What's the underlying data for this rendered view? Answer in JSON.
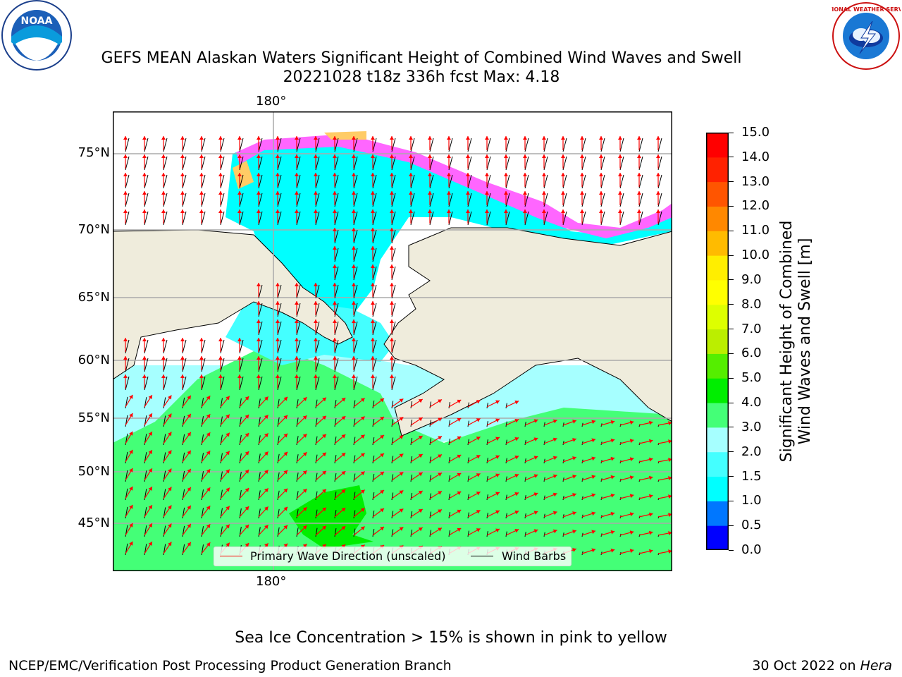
{
  "header": {
    "title_line1": "GEFS MEAN Alaskan Waters Significant Height of Combined Wind Waves and Swell",
    "title_line2": "20221028 t18z 336h fcst   Max: 4.18"
  },
  "logos": {
    "noaa": {
      "icon": "noaa-logo-icon",
      "text": "NOAA"
    },
    "nws": {
      "icon": "nws-logo-icon",
      "text": "NATIONAL WEATHER SERVICE"
    }
  },
  "map": {
    "lat_labels": [
      "75°N",
      "70°N",
      "65°N",
      "60°N",
      "55°N",
      "50°N",
      "45°N"
    ],
    "lon_label_top": "180°",
    "lon_label_bottom": "180°",
    "land_color": "#efecdc",
    "grid_color": "#aaaaaa",
    "legend": {
      "primary_wave_label": "Primary Wave Direction (unscaled)",
      "primary_wave_color": "#ff0000",
      "wind_barbs_label": "Wind Barbs",
      "wind_barbs_color": "#000000"
    }
  },
  "colorbar": {
    "label_line1": "Significant Height of Combined",
    "label_line2": "Wind Waves and Swell [m]",
    "ticks": [
      "0.0",
      "0.5",
      "1.0",
      "1.5",
      "2.0",
      "3.0",
      "4.0",
      "5.0",
      "6.0",
      "7.0",
      "8.0",
      "9.0",
      "10.0",
      "11.0",
      "12.0",
      "13.0",
      "14.0",
      "15.0"
    ],
    "colors": [
      "#0000ff",
      "#0077ff",
      "#00ffff",
      "#44ffff",
      "#a6ffff",
      "#44ff77",
      "#00ee00",
      "#55ee00",
      "#bbee00",
      "#ddff00",
      "#ffff00",
      "#ffee00",
      "#ffbb00",
      "#ff8800",
      "#ff5500",
      "#ff2200",
      "#ff0000"
    ]
  },
  "footer": {
    "sea_ice_note": "Sea Ice Concentration > 15% is shown in pink to yellow",
    "producer": "NCEP/EMC/Verification Post Processing Product Generation Branch",
    "date_prefix": "30 Oct 2022 on ",
    "machine": "Hera"
  }
}
